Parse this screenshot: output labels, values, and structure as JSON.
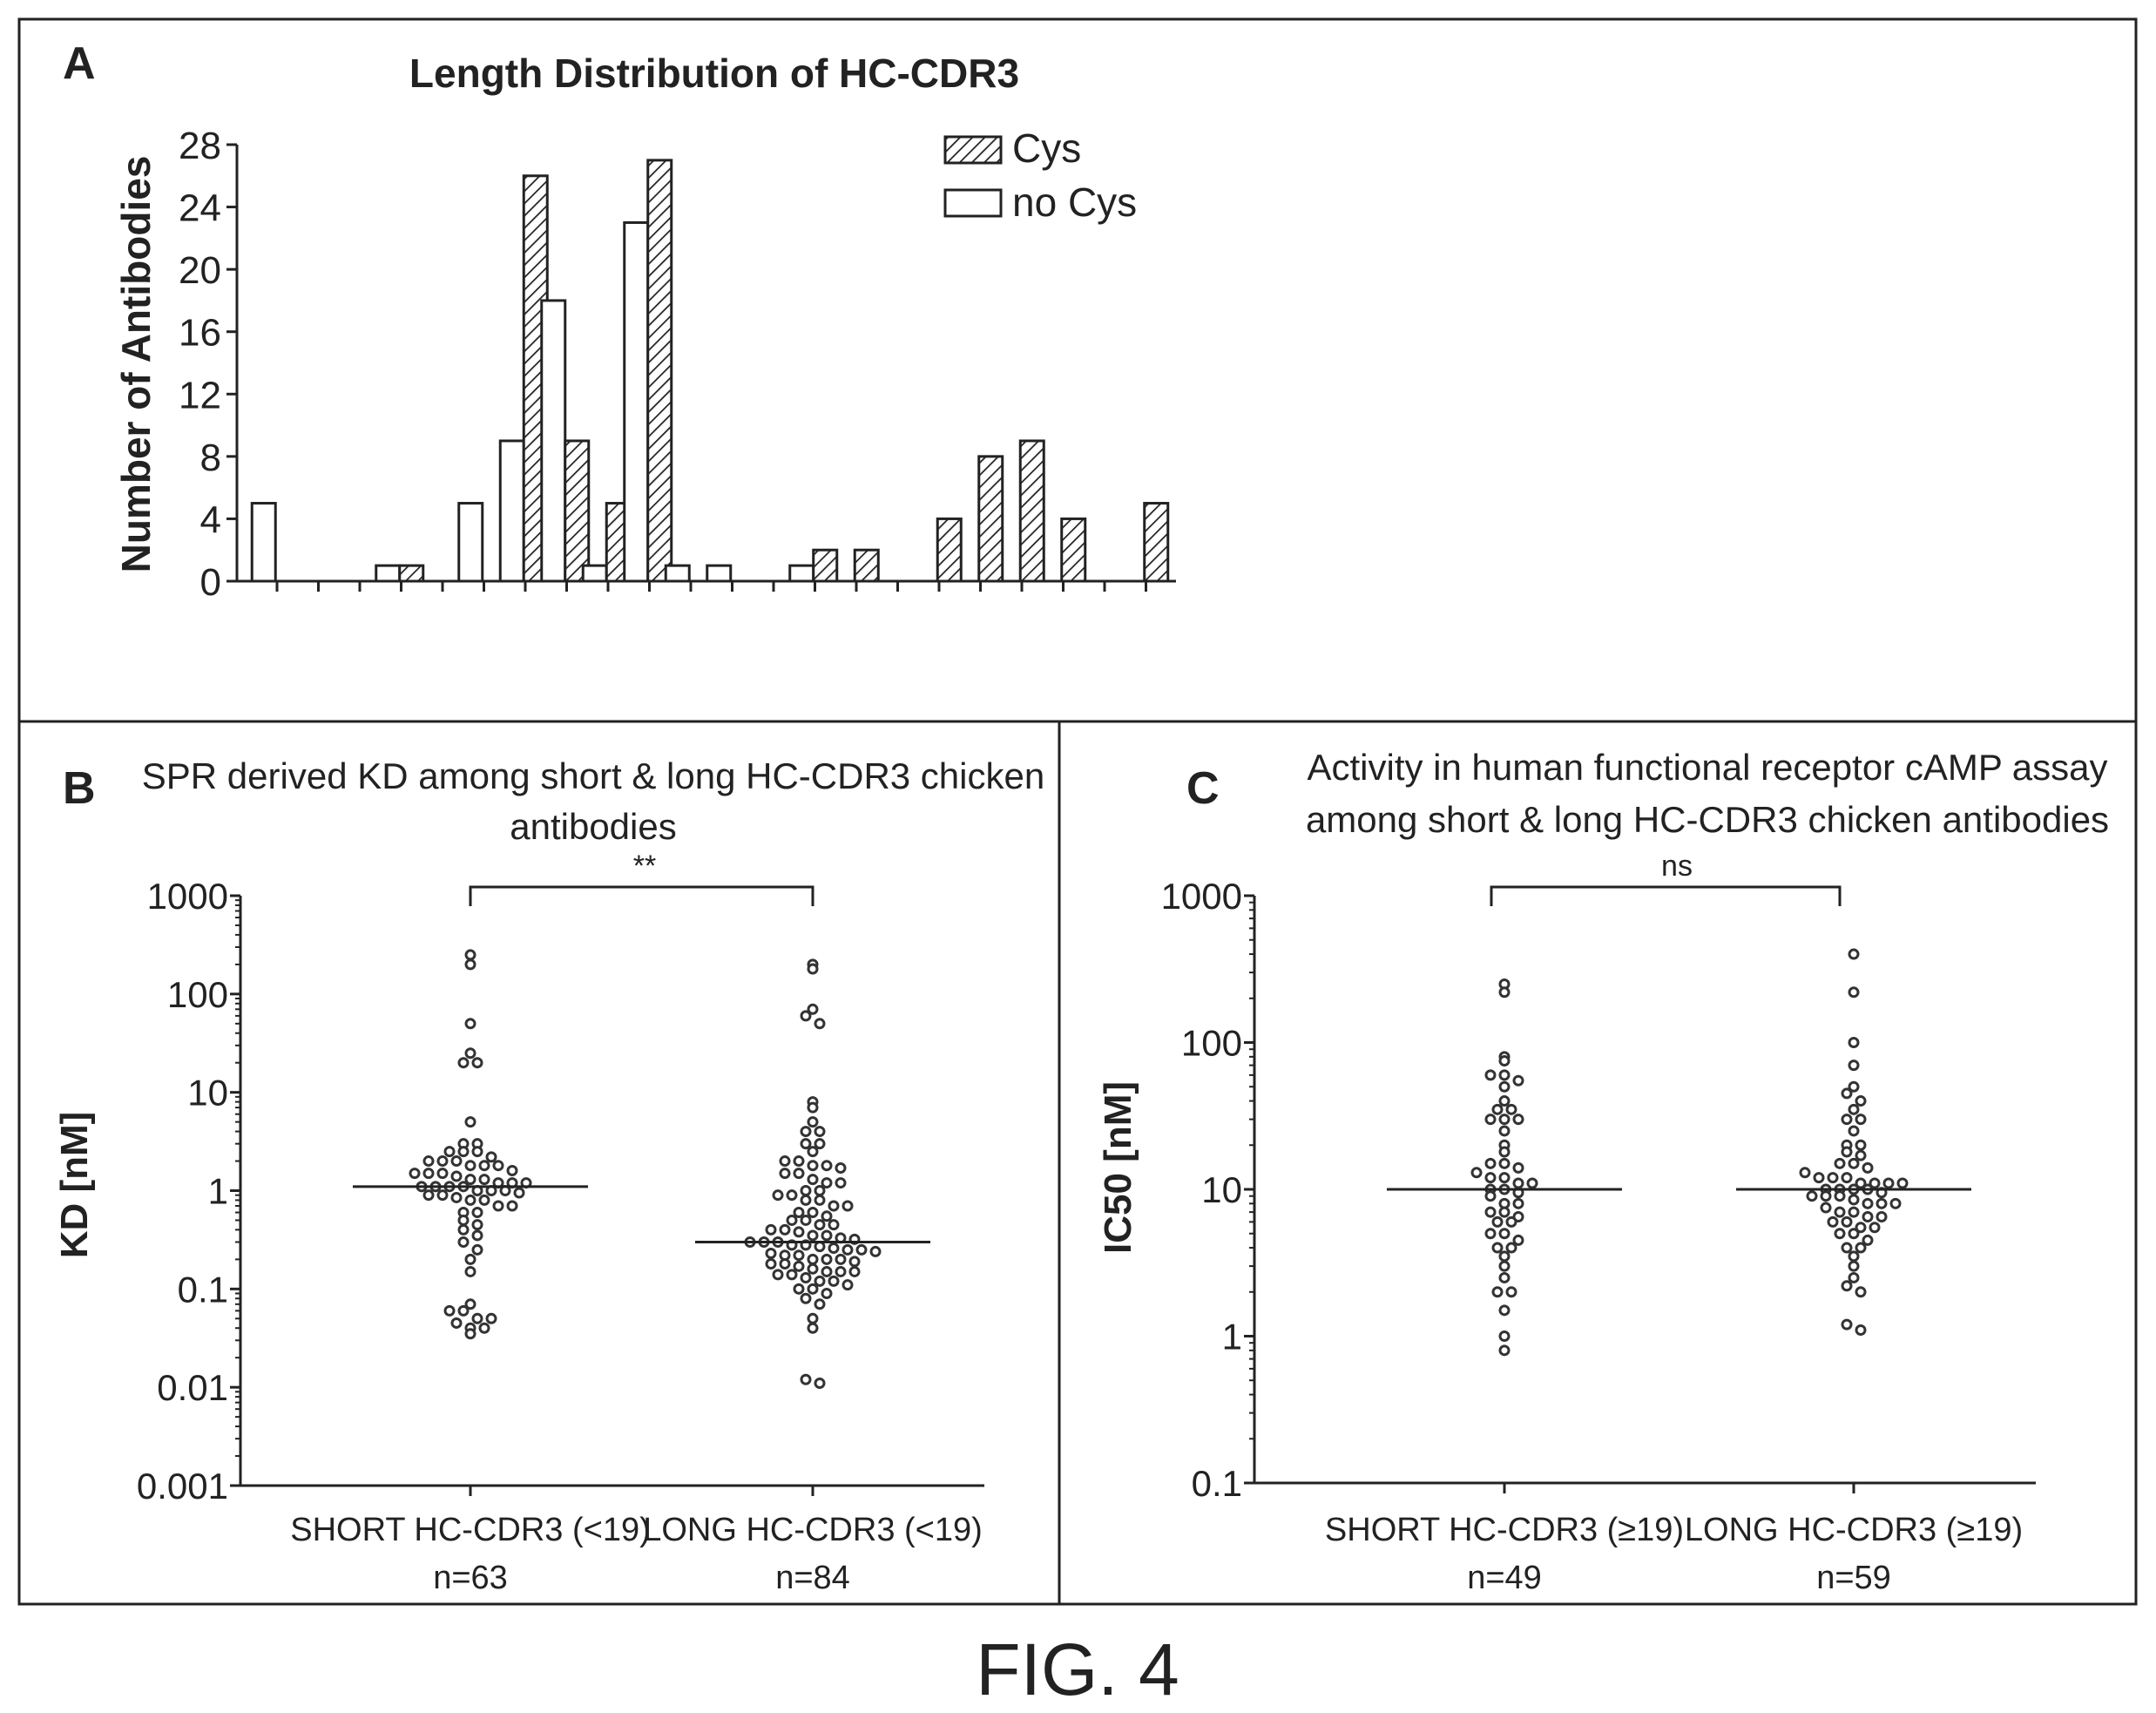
{
  "figure_label": "FIG. 4",
  "chart_data": [
    {
      "panel": "A",
      "type": "bar",
      "title": "Length Distribution of HC-CDR3",
      "xlabel": "",
      "ylabel": "Number of Antibodies",
      "ylim": [
        0,
        28
      ],
      "yticks": [
        "0",
        "4",
        "8",
        "12",
        "16",
        "20",
        "24",
        "28"
      ],
      "legend_position": "top-right",
      "categories": [
        "1",
        "2",
        "3",
        "4",
        "5",
        "6",
        "7",
        "8",
        "9",
        "10",
        "11",
        "12",
        "13",
        "14",
        "15",
        "16",
        "17",
        "18",
        "19",
        "20",
        "21",
        "22"
      ],
      "series": [
        {
          "name": "Cys",
          "pattern": "hatched",
          "values": [
            0,
            0,
            0,
            1,
            0,
            0,
            26,
            9,
            5,
            27,
            0,
            0,
            0,
            2,
            2,
            0,
            4,
            8,
            9,
            4,
            0,
            5
          ]
        },
        {
          "name": "no Cys",
          "pattern": "open",
          "values": [
            5,
            0,
            0,
            1,
            0,
            5,
            9,
            18,
            1,
            23,
            1,
            1,
            0,
            1,
            0,
            0,
            0,
            0,
            0,
            0,
            0,
            0
          ]
        }
      ]
    },
    {
      "panel": "B",
      "type": "scatter",
      "title": "SPR derived KD among short & long HC-CDR3 chicken antibodies",
      "ylabel": "KD [nM]",
      "yscale": "log",
      "ylim": [
        0.001,
        1000
      ],
      "yticks": [
        "0.001",
        "0.01",
        "0.1",
        "1",
        "10",
        "100",
        "1000"
      ],
      "significance": "**",
      "groups": [
        {
          "label": "SHORT HC-CDR3 (<19)",
          "n": "n=63",
          "median": 1.1,
          "values": [
            250,
            200,
            50,
            25,
            20,
            20,
            5,
            3,
            3,
            2.5,
            2.5,
            2.5,
            2.2,
            2,
            2,
            2,
            1.8,
            1.8,
            1.8,
            1.6,
            1.5,
            1.5,
            1.5,
            1.4,
            1.3,
            1.3,
            1.2,
            1.2,
            1.2,
            1.1,
            1.1,
            1.1,
            1.1,
            1,
            1,
            1,
            0.95,
            0.9,
            0.9,
            0.85,
            0.8,
            0.8,
            0.7,
            0.7,
            0.6,
            0.6,
            0.5,
            0.45,
            0.4,
            0.35,
            0.3,
            0.25,
            0.2,
            0.15,
            0.07,
            0.06,
            0.06,
            0.05,
            0.05,
            0.045,
            0.04,
            0.04,
            0.035
          ]
        },
        {
          "label": "LONG HC-CDR3 (<19)",
          "n": "n=84",
          "median": 0.3,
          "values": [
            200,
            180,
            70,
            60,
            50,
            8,
            7,
            5,
            4,
            4,
            3,
            3,
            2.5,
            2,
            2,
            1.8,
            1.8,
            1.7,
            1.5,
            1.5,
            1.3,
            1.2,
            1.2,
            1,
            1,
            0.9,
            0.9,
            0.8,
            0.8,
            0.7,
            0.7,
            0.6,
            0.6,
            0.55,
            0.5,
            0.5,
            0.45,
            0.45,
            0.4,
            0.4,
            0.38,
            0.35,
            0.35,
            0.33,
            0.32,
            0.3,
            0.3,
            0.3,
            0.28,
            0.28,
            0.27,
            0.26,
            0.25,
            0.25,
            0.24,
            0.23,
            0.22,
            0.22,
            0.2,
            0.2,
            0.2,
            0.19,
            0.18,
            0.18,
            0.17,
            0.16,
            0.15,
            0.15,
            0.15,
            0.14,
            0.14,
            0.13,
            0.12,
            0.12,
            0.11,
            0.1,
            0.1,
            0.09,
            0.08,
            0.07,
            0.05,
            0.04,
            0.012,
            0.011
          ]
        }
      ]
    },
    {
      "panel": "C",
      "type": "scatter",
      "title": "Activity in human functional receptor cAMP assay among short & long HC-CDR3 chicken antibodies",
      "ylabel": "IC50 [nM]",
      "yscale": "log",
      "ylim": [
        0.1,
        1000
      ],
      "yticks": [
        "0.1",
        "1",
        "10",
        "100",
        "1000"
      ],
      "significance": "ns",
      "groups": [
        {
          "label": "SHORT HC-CDR3 (≥19)",
          "n": "n=49",
          "median": 10,
          "values": [
            250,
            220,
            80,
            75,
            60,
            60,
            55,
            50,
            40,
            35,
            35,
            30,
            30,
            30,
            25,
            20,
            18,
            15,
            15,
            14,
            13,
            12,
            12,
            11,
            11,
            10,
            10,
            9.5,
            9,
            8,
            8,
            7,
            7,
            6.5,
            6,
            6,
            5,
            5,
            4.5,
            4,
            4,
            3.5,
            3,
            2.5,
            2,
            2,
            1.5,
            1,
            0.8
          ]
        },
        {
          "label": "LONG HC-CDR3 (≥19)",
          "n": "n=59",
          "median": 10,
          "values": [
            400,
            220,
            100,
            70,
            50,
            45,
            40,
            35,
            30,
            30,
            25,
            20,
            20,
            18,
            17,
            15,
            15,
            14,
            13,
            12,
            12,
            12,
            11,
            11,
            11,
            11,
            10,
            10,
            10,
            10,
            9.5,
            9,
            9,
            9,
            8.5,
            8,
            8,
            8,
            7.5,
            7,
            7,
            6.5,
            6.5,
            6,
            6,
            5.5,
            5.5,
            5,
            5,
            4.5,
            4,
            4,
            3.5,
            3,
            2.5,
            2.2,
            2,
            1.2,
            1.1
          ]
        }
      ]
    }
  ]
}
